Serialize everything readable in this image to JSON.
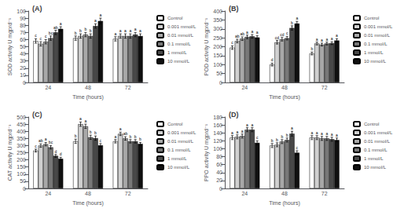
{
  "chart_data": [
    {
      "type": "bar",
      "title": "(A)",
      "xlabel": "Time (hours)",
      "ylabel": "SOD activity U mgprd⁻¹",
      "categories": [
        "24",
        "48",
        "72"
      ],
      "ylim": [
        0,
        100
      ],
      "yticks": [
        0,
        10,
        20,
        30,
        40,
        50,
        60,
        70,
        80,
        90,
        100
      ],
      "grid": false,
      "legend": "upper right",
      "series": [
        {
          "name": "Control",
          "color": "#ffffff",
          "values": [
            58,
            62,
            61
          ],
          "errors": [
            3,
            3,
            3
          ],
          "sig_labels": [
            "c",
            "b",
            "a"
          ]
        },
        {
          "name": "0.001 mmol/L",
          "color": "#d0d0d0",
          "values": [
            54,
            65,
            65
          ],
          "errors": [
            3,
            3,
            3
          ],
          "sig_labels": [
            "c",
            "b",
            "a"
          ]
        },
        {
          "name": "0.01 mmol/L",
          "color": "#a8a8a8",
          "values": [
            57,
            67,
            65
          ],
          "errors": [
            3,
            3,
            3
          ],
          "sig_labels": [
            "c",
            "b",
            "a"
          ]
        },
        {
          "name": "0.1 mmol/L",
          "color": "#787878",
          "values": [
            62,
            65,
            65
          ],
          "errors": [
            3,
            3,
            3
          ],
          "sig_labels": [
            "bc",
            "b",
            "a"
          ]
        },
        {
          "name": "1 mmol/L",
          "color": "#484848",
          "values": [
            70,
            79,
            67
          ],
          "errors": [
            3,
            3,
            3
          ],
          "sig_labels": [
            "ab",
            "a",
            "a"
          ]
        },
        {
          "name": "10 mmol/L",
          "color": "#101010",
          "values": [
            75,
            86,
            65
          ],
          "errors": [
            3,
            4,
            3
          ],
          "sig_labels": [
            "a",
            "a",
            "a"
          ]
        }
      ]
    },
    {
      "type": "bar",
      "title": "(B)",
      "xlabel": "Time (hours)",
      "ylabel": "POD activity U mgprd⁻¹",
      "categories": [
        "24",
        "48",
        "72"
      ],
      "ylim": [
        0,
        400
      ],
      "yticks": [
        0,
        50,
        100,
        150,
        200,
        250,
        300,
        350,
        400
      ],
      "grid": false,
      "legend": "upper right",
      "series": [
        {
          "name": "Control",
          "color": "#ffffff",
          "values": [
            195,
            100,
            162
          ],
          "errors": [
            10,
            8,
            8
          ],
          "sig_labels": [
            "c",
            "d",
            "b"
          ]
        },
        {
          "name": "0.001 mmol/L",
          "color": "#d0d0d0",
          "values": [
            232,
            225,
            218
          ],
          "errors": [
            10,
            10,
            8
          ],
          "sig_labels": [
            "ab",
            "cd",
            "a"
          ]
        },
        {
          "name": "0.01 mmol/L",
          "color": "#a8a8a8",
          "values": [
            245,
            242,
            212
          ],
          "errors": [
            10,
            10,
            8
          ],
          "sig_labels": [
            "ab",
            "cd",
            "a"
          ]
        },
        {
          "name": "0.1 mmol/L",
          "color": "#787878",
          "values": [
            255,
            248,
            218
          ],
          "errors": [
            10,
            10,
            8
          ],
          "sig_labels": [
            "a",
            "c",
            "a"
          ]
        },
        {
          "name": "1 mmol/L",
          "color": "#484848",
          "values": [
            258,
            305,
            220
          ],
          "errors": [
            10,
            12,
            8
          ],
          "sig_labels": [
            "a",
            "b",
            "a"
          ]
        },
        {
          "name": "10 mmol/L",
          "color": "#101010",
          "values": [
            252,
            330,
            235
          ],
          "errors": [
            10,
            12,
            10
          ],
          "sig_labels": [
            "a",
            "a",
            "a"
          ]
        }
      ]
    },
    {
      "type": "bar",
      "title": "(C)",
      "xlabel": "Time (hours)",
      "ylabel": "CAT activity U mgprd⁻¹",
      "categories": [
        "24",
        "48",
        "72"
      ],
      "ylim": [
        0,
        500
      ],
      "yticks": [
        0,
        50,
        100,
        150,
        200,
        250,
        300,
        350,
        400,
        450,
        500
      ],
      "grid": false,
      "legend": "upper right",
      "series": [
        {
          "name": "Control",
          "color": "#ffffff",
          "values": [
            265,
            330,
            330
          ],
          "errors": [
            10,
            15,
            12
          ],
          "sig_labels": [
            "c",
            "b",
            "a"
          ]
        },
        {
          "name": "0.001 mmol/L",
          "color": "#d0d0d0",
          "values": [
            300,
            450,
            382
          ],
          "errors": [
            12,
            15,
            12
          ],
          "sig_labels": [
            "ab",
            "a",
            "a"
          ]
        },
        {
          "name": "0.01 mmol/L",
          "color": "#a8a8a8",
          "values": [
            310,
            435,
            350
          ],
          "errors": [
            12,
            15,
            12
          ],
          "sig_labels": [
            "a",
            "a",
            "ab"
          ]
        },
        {
          "name": "0.1 mmol/L",
          "color": "#787878",
          "values": [
            288,
            358,
            330
          ],
          "errors": [
            12,
            15,
            12
          ],
          "sig_labels": [
            "bc",
            "b",
            "b"
          ]
        },
        {
          "name": "1 mmol/L",
          "color": "#484848",
          "values": [
            228,
            352,
            330
          ],
          "errors": [
            10,
            15,
            12
          ],
          "sig_labels": [
            "d",
            "b",
            "b"
          ]
        },
        {
          "name": "10 mmol/L",
          "color": "#101010",
          "values": [
            208,
            302,
            312
          ],
          "errors": [
            10,
            12,
            10
          ],
          "sig_labels": [
            "d",
            "c",
            "b"
          ]
        }
      ]
    },
    {
      "type": "bar",
      "title": "(D)",
      "xlabel": "Time (hours)",
      "ylabel": "PPO activity U mgprd⁻¹",
      "categories": [
        "24",
        "48",
        "72"
      ],
      "ylim": [
        0,
        180
      ],
      "yticks": [
        0,
        20,
        40,
        60,
        80,
        100,
        120,
        140,
        160,
        180
      ],
      "grid": false,
      "legend": "upper right",
      "series": [
        {
          "name": "Control",
          "color": "#ffffff",
          "values": [
            128,
            108,
            128
          ],
          "errors": [
            5,
            5,
            5
          ],
          "sig_labels": [
            "a",
            "b",
            "a"
          ]
        },
        {
          "name": "0.001 mmol/L",
          "color": "#d0d0d0",
          "values": [
            130,
            110,
            128
          ],
          "errors": [
            5,
            5,
            5
          ],
          "sig_labels": [
            "a",
            "b",
            "a"
          ]
        },
        {
          "name": "0.01 mmol/L",
          "color": "#a8a8a8",
          "values": [
            132,
            118,
            126
          ],
          "errors": [
            5,
            5,
            5
          ],
          "sig_labels": [
            "a",
            "b",
            "a"
          ]
        },
        {
          "name": "0.1 mmol/L",
          "color": "#787878",
          "values": [
            148,
            122,
            126
          ],
          "errors": [
            5,
            5,
            5
          ],
          "sig_labels": [
            "a",
            "b",
            "a"
          ]
        },
        {
          "name": "1 mmol/L",
          "color": "#484848",
          "values": [
            148,
            138,
            124
          ],
          "errors": [
            5,
            6,
            5
          ],
          "sig_labels": [
            "a",
            "a",
            "a"
          ]
        },
        {
          "name": "10 mmol/L",
          "color": "#101010",
          "values": [
            115,
            90,
            122
          ],
          "errors": [
            5,
            5,
            5
          ],
          "sig_labels": [
            "c",
            "c",
            "a"
          ]
        }
      ]
    }
  ]
}
